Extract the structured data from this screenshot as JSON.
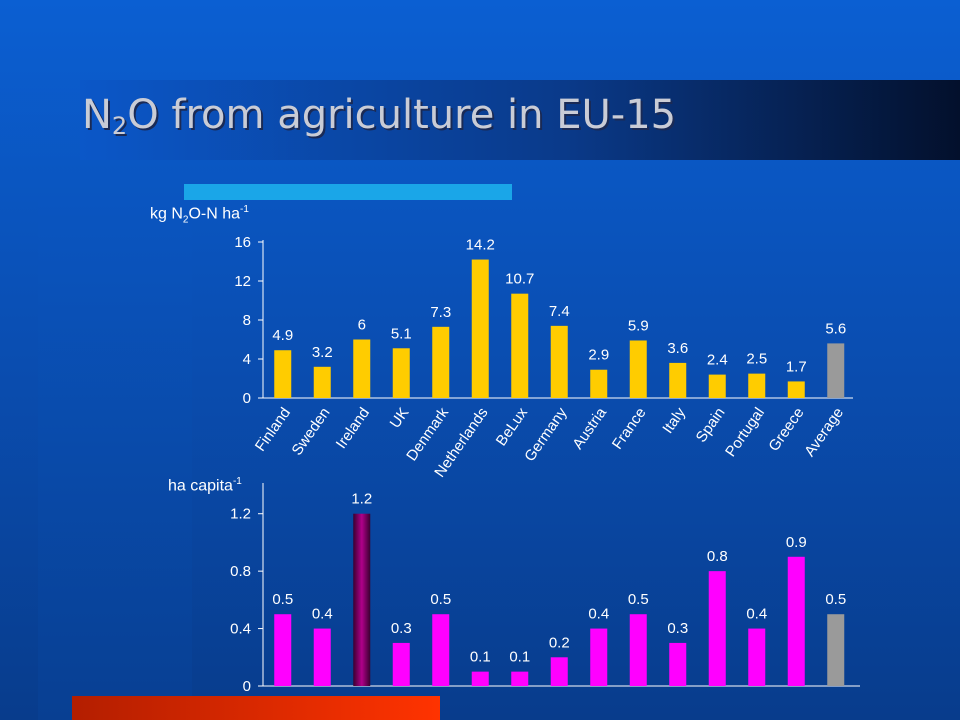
{
  "slide": {
    "title_main": "N",
    "title_sub": "2",
    "title_rest": "O from agriculture in EU-15"
  },
  "chart_data": [
    {
      "type": "bar",
      "ylabel_prefix": "kg N",
      "ylabel_sub": "2",
      "ylabel_mid": "O-N ha",
      "ylabel_sup": "-1",
      "categories": [
        "Finland",
        "Sweden",
        "Ireland",
        "UK",
        "Denmark",
        "Netherlands",
        "BeLux",
        "Germany",
        "Austria",
        "France",
        "Italy",
        "Spain",
        "Portugal",
        "Greece",
        "Average"
      ],
      "values": [
        4.9,
        3.2,
        6,
        5.1,
        7.3,
        14.2,
        10.7,
        7.4,
        2.9,
        5.9,
        3.6,
        2.4,
        2.5,
        1.7,
        5.6
      ],
      "data_labels": [
        "4.9",
        "3.2",
        "6",
        "5.1",
        "7.3",
        "14.2",
        "10.7",
        "7.4",
        "2.9",
        "5.9",
        "3.6",
        "2.4",
        "2.5",
        "1.7",
        "5.6"
      ],
      "yticks": [
        "0",
        "4",
        "8",
        "12",
        "16"
      ],
      "ylim": [
        0,
        16
      ],
      "bar_color": "#ffcc00",
      "average_color": "#9a9a9a",
      "grid": false,
      "legend": "none"
    },
    {
      "type": "bar",
      "ylabel_prefix": "ha capita",
      "ylabel_sup": "-1",
      "values": [
        0.5,
        0.4,
        1.2,
        0.3,
        0.5,
        0.1,
        0.1,
        0.2,
        0.4,
        0.5,
        0.3,
        0.8,
        0.4,
        0.9,
        0.5
      ],
      "data_labels": [
        "0.5",
        "0.4",
        "1.2",
        "0.3",
        "0.5",
        "0.1",
        "0.1",
        "0.2",
        "0.4",
        "0.5",
        "0.3",
        "0.8",
        "0.4",
        "0.9",
        "0.5"
      ],
      "yticks": [
        "0",
        "0.4",
        "0.8",
        "1.2"
      ],
      "ylim": [
        0,
        1.4
      ],
      "bar_color": "#ff00ff",
      "highlight_color": "#800060",
      "average_color": "#9a9a9a",
      "grid": false,
      "legend": "none"
    }
  ]
}
